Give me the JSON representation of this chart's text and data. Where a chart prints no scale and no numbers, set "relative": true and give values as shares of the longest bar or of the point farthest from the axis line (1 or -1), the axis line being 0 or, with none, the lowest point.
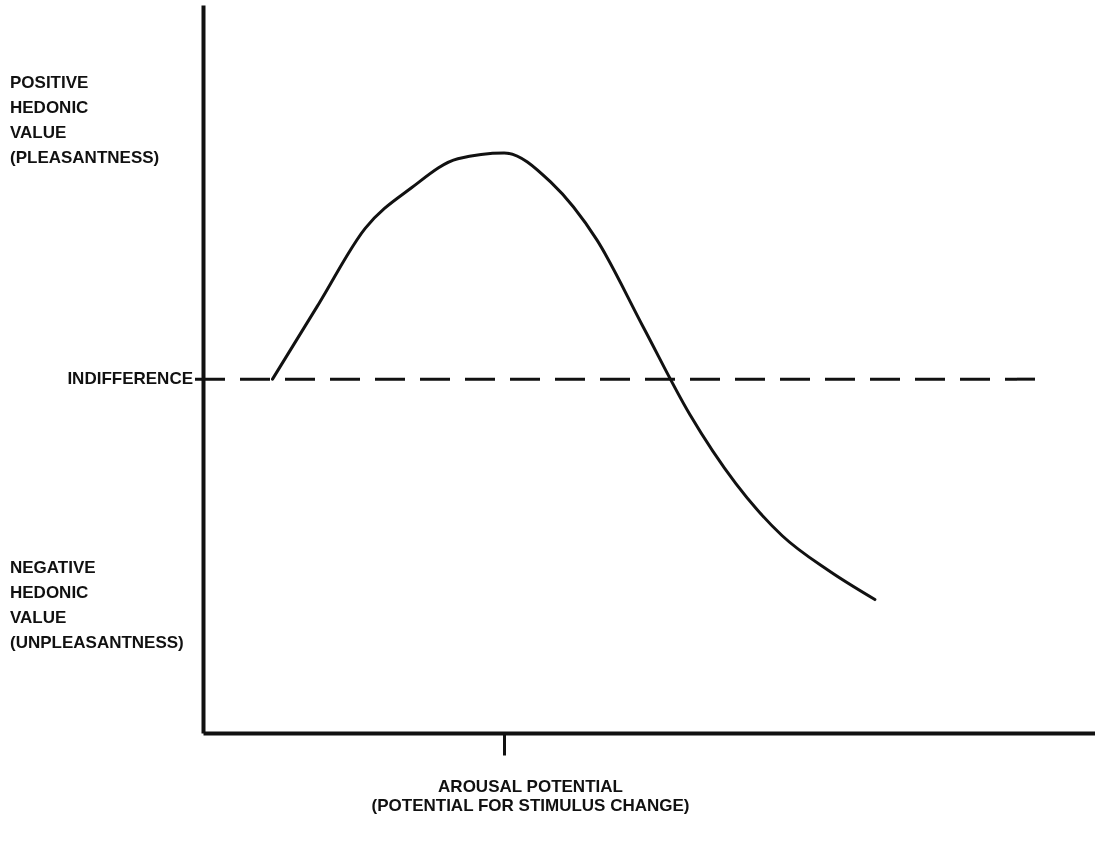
{
  "chart_data": {
    "type": "line",
    "relative": true,
    "xlabel": "AROUSAL POTENTIAL\n(POTENTIAL FOR STIMULUS CHANGE)",
    "categories": [
      null,
      null,
      null,
      null,
      null,
      null,
      null,
      null,
      null,
      null,
      null,
      null,
      null,
      null
    ],
    "series": [
      {
        "color": "#111111",
        "values": [
          0.61,
          0.74,
          0.87,
          0.94,
          0.99,
          1.0,
          0.95,
          0.85,
          0.7,
          0.55,
          0.43,
          0.34,
          0.28,
          0.23
        ]
      }
    ],
    "ref_lines": [
      {
        "axis": "y",
        "value": 0.61,
        "label": "INDIFFERENCE",
        "color": "#111111",
        "line_style": "dashed"
      }
    ],
    "annotations": [
      "POSITIVE\nHEDONIC\nVALUE\n(PLEASANTNESS)",
      "NEGATIVE\nHEDONIC\nVALUE\n(UNPLEASANTNESS)"
    ],
    "line_style": "solid"
  }
}
